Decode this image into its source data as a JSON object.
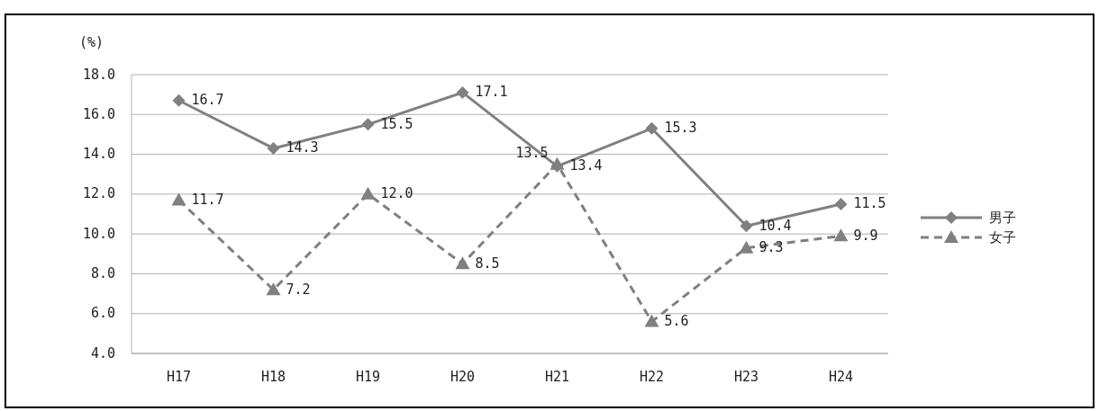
{
  "chart_data": {
    "type": "line",
    "ylabel": "(%)",
    "categories": [
      "H17",
      "H18",
      "H19",
      "H20",
      "H21",
      "H22",
      "H23",
      "H24"
    ],
    "series": [
      {
        "name": "男子",
        "color": "#808080",
        "marker": "diamond",
        "line_style": "solid",
        "values": [
          16.7,
          14.3,
          15.5,
          17.1,
          13.4,
          15.3,
          10.4,
          11.5
        ],
        "value_labels": [
          "16.7",
          "14.3",
          "15.5",
          "17.1",
          "13.4",
          "15.3",
          "10.4",
          "11.5"
        ]
      },
      {
        "name": "女子",
        "color": "#808080",
        "marker": "triangle",
        "line_style": "dashed",
        "values": [
          11.7,
          7.2,
          12.0,
          8.5,
          13.5,
          5.6,
          9.3,
          9.9
        ],
        "value_labels": [
          "11.7",
          "7.2",
          "12.0",
          "8.5",
          "13.5",
          "5.6",
          "9.3",
          "9.9"
        ]
      }
    ],
    "ylim": [
      4,
      18
    ],
    "yticks": [
      {
        "value": 4,
        "label": "4.0"
      },
      {
        "value": 6,
        "label": "6.0"
      },
      {
        "value": 8,
        "label": "8.0"
      },
      {
        "value": 10,
        "label": "10.0"
      },
      {
        "value": 12,
        "label": "12.0"
      },
      {
        "value": 14,
        "label": "14.0"
      },
      {
        "value": 16,
        "label": "16.0"
      },
      {
        "value": 18,
        "label": "18.0"
      }
    ],
    "grid": "y",
    "legend": "right"
  }
}
